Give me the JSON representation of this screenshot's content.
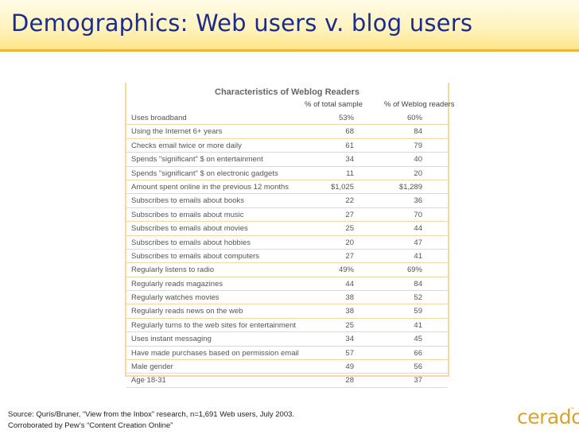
{
  "slide": {
    "title": "Demographics: Web users v. blog users",
    "source_line1": "Source: Quris/Bruner, “View from the Inbox” research, n=1,691 Web users, July 2003.",
    "source_line2": "Corroborated by Pew’s “Content Creation Online”",
    "logo_text": "cerado",
    "logo_tm": "™"
  },
  "table": {
    "title": "Characteristics of Weblog Readers",
    "col1_header": "% of total sample",
    "col2_header": "% of Weblog readers",
    "rows": [
      {
        "label": "Uses broadband",
        "total": "53%",
        "weblog": "60%"
      },
      {
        "label": "Using the Internet 6+ years",
        "total": "68",
        "weblog": "84"
      },
      {
        "label": "Checks email twice or more daily",
        "total": "61",
        "weblog": "79"
      },
      {
        "label": "Spends \"significant\" $ on entertainment",
        "total": "34",
        "weblog": "40"
      },
      {
        "label": "Spends \"significant\" $ on electronic gadgets",
        "total": "11",
        "weblog": "20"
      },
      {
        "label": "Amount spent online in the previous 12 months",
        "total": "$1,025",
        "weblog": "$1,289"
      },
      {
        "label": "Subscribes to emails about books",
        "total": "22",
        "weblog": "36"
      },
      {
        "label": "Subscribes to emails about music",
        "total": "27",
        "weblog": "70"
      },
      {
        "label": "Subscribes to emails about movies",
        "total": "25",
        "weblog": "44"
      },
      {
        "label": "Subscribes to emails about hobbies",
        "total": "20",
        "weblog": "47"
      },
      {
        "label": "Subscribes to emails about computers",
        "total": "27",
        "weblog": "41"
      },
      {
        "label": "Regularly listens to radio",
        "total": "49%",
        "weblog": "69%"
      },
      {
        "label": "Regularly reads magazines",
        "total": "44",
        "weblog": "84"
      },
      {
        "label": "Regularly watches movies",
        "total": "38",
        "weblog": "52"
      },
      {
        "label": "Regularly reads news on the web",
        "total": "38",
        "weblog": "59"
      },
      {
        "label": "Regularly turns to the web sites for entertainment",
        "total": "25",
        "weblog": "41"
      },
      {
        "label": "Uses instant messaging",
        "total": "34",
        "weblog": "45"
      },
      {
        "label": "Have made purchases based on permission email",
        "total": "57",
        "weblog": "66"
      },
      {
        "label": "Male gender",
        "total": "49",
        "weblog": "56"
      },
      {
        "label": "Age 18-31",
        "total": "28",
        "weblog": "37"
      }
    ]
  }
}
